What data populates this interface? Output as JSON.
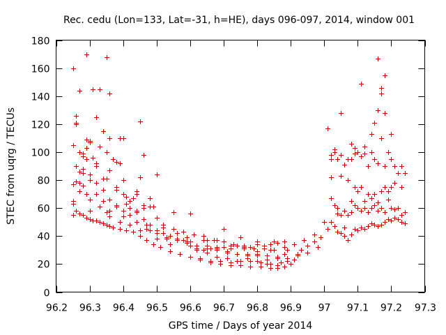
{
  "chart_data": {
    "type": "scatter",
    "title": "Rec. cedu (Lon=133, Lat=-31, h=HE), days 096-097, 2014, window 001",
    "xlabel": "GPS time / Days of year 2014",
    "ylabel": "STEC from uqrg / TECUs",
    "xlim": [
      96.2,
      97.3
    ],
    "ylim": [
      0,
      180
    ],
    "xticks": [
      96.2,
      96.3,
      96.4,
      96.5,
      96.6,
      96.7,
      96.8,
      96.9,
      97.0,
      97.1,
      97.2,
      97.3
    ],
    "xtick_labels": [
      "96.2",
      "96.3",
      "96.4",
      "96.5",
      "96.6",
      "96.7",
      "96.8",
      "96.9",
      "97",
      "97.1",
      "97.2",
      "97.3"
    ],
    "yticks": [
      0,
      20,
      40,
      60,
      80,
      100,
      120,
      140,
      160,
      180
    ],
    "ytick_labels": [
      "0",
      "20",
      "40",
      "60",
      "80",
      "100",
      "120",
      "140",
      "160",
      "180"
    ],
    "grid": false,
    "marker": "+",
    "color": "#cc0000",
    "x": [
      96.25,
      96.25,
      96.25,
      96.26,
      96.26,
      96.27,
      96.27,
      96.28,
      96.28,
      96.29,
      96.29,
      96.3,
      96.31,
      96.32,
      96.33,
      96.34,
      96.35,
      96.36,
      96.37,
      96.39,
      96.41,
      96.43,
      96.45,
      96.47,
      96.49,
      96.51,
      96.54,
      96.57,
      96.6,
      96.63,
      96.66,
      96.69,
      96.72,
      96.75,
      96.78,
      96.81,
      96.84,
      96.86,
      96.88,
      96.9,
      96.91,
      96.92,
      96.93,
      96.95,
      96.97,
      96.99,
      96.25,
      96.26,
      96.27,
      96.28,
      96.29,
      96.3,
      96.32,
      96.34,
      96.36,
      96.38,
      96.4,
      96.42,
      96.44,
      96.47,
      96.5,
      96.53,
      96.56,
      96.59,
      96.62,
      96.65,
      96.68,
      96.71,
      96.74,
      96.77,
      96.8,
      96.83,
      96.86,
      96.89,
      96.92,
      96.95,
      96.98,
      96.25,
      96.27,
      96.29,
      96.31,
      96.33,
      96.35,
      96.37,
      96.39,
      96.41,
      96.43,
      96.46,
      96.49,
      96.52,
      96.55,
      96.58,
      96.61,
      96.64,
      96.67,
      96.7,
      96.73,
      96.76,
      96.79,
      96.82,
      96.85,
      96.88,
      96.91,
      96.94,
      96.97,
      96.26,
      96.28,
      96.3,
      96.32,
      96.34,
      96.36,
      96.38,
      96.4,
      96.42,
      96.44,
      96.46,
      96.48,
      96.5,
      96.52,
      96.54,
      96.56,
      96.58,
      96.6,
      96.62,
      96.64,
      96.66,
      96.68,
      96.7,
      96.72,
      96.74,
      96.76,
      96.78,
      96.8,
      96.82,
      96.84,
      96.86,
      96.88,
      96.26,
      96.28,
      96.3,
      96.32,
      96.34,
      96.36,
      96.38,
      96.4,
      96.42,
      96.44,
      96.46,
      96.48,
      96.5,
      96.53,
      96.56,
      96.59,
      96.62,
      96.65,
      96.68,
      96.71,
      96.74,
      96.77,
      96.8,
      96.83,
      96.86,
      96.89,
      96.26,
      96.29,
      96.32,
      96.35,
      96.38,
      96.41,
      96.44,
      96.47,
      96.5,
      96.53,
      96.56,
      96.59,
      96.62,
      96.65,
      96.68,
      96.71,
      96.74,
      96.77,
      96.8,
      96.83,
      96.86,
      96.89,
      96.27,
      96.3,
      96.33,
      96.36,
      96.39,
      96.42,
      96.45,
      96.48,
      96.51,
      96.54,
      96.57,
      96.6,
      96.63,
      96.66,
      96.69,
      96.72,
      96.75,
      96.78,
      96.81,
      96.84,
      96.87,
      96.28,
      96.32,
      96.36,
      96.4,
      96.44,
      96.48,
      96.52,
      96.56,
      96.6,
      96.64,
      96.68,
      96.72,
      96.76,
      96.8,
      96.84,
      96.88,
      96.3,
      96.35,
      96.4,
      96.45,
      96.5,
      96.55,
      96.6,
      96.65,
      96.7,
      96.75,
      96.8,
      96.85,
      96.25,
      96.26,
      96.29,
      96.33,
      96.35,
      96.36,
      96.45,
      96.27,
      96.3,
      96.31,
      96.34,
      96.38,
      96.39,
      96.46,
      97.02,
      97.03,
      97.04,
      97.05,
      97.06,
      97.07,
      97.08,
      97.09,
      97.1,
      97.11,
      97.12,
      97.13,
      97.14,
      97.15,
      97.16,
      97.17,
      97.18,
      97.19,
      97.2,
      97.21,
      97.22,
      97.23,
      97.24,
      97.01,
      97.02,
      97.03,
      97.05,
      97.07,
      97.09,
      97.11,
      97.13,
      97.15,
      97.17,
      97.19,
      97.21,
      97.23,
      97.02,
      97.04,
      97.06,
      97.08,
      97.1,
      97.12,
      97.14,
      97.16,
      97.18,
      97.2,
      97.22,
      97.24,
      97.03,
      97.05,
      97.07,
      97.09,
      97.11,
      97.13,
      97.15,
      97.17,
      97.19,
      97.21,
      97.23,
      97.04,
      97.06,
      97.08,
      97.1,
      97.12,
      97.14,
      97.16,
      97.18,
      97.2,
      97.22,
      97.0,
      97.01,
      97.02,
      97.03,
      97.04,
      97.05,
      97.06,
      97.07,
      97.08,
      97.09,
      97.1,
      97.11,
      97.12,
      97.13,
      97.14,
      97.15,
      97.16,
      97.17,
      97.18,
      97.19,
      97.2,
      97.21,
      97.22,
      97.23,
      97.24,
      97.11,
      97.16,
      97.17,
      97.18,
      97.16,
      97.17,
      97.15,
      97.14,
      97.05,
      97.08,
      97.02,
      97.12,
      97.09,
      97.2,
      97.18
    ],
    "y": [
      55,
      63,
      77,
      58,
      79,
      56,
      72,
      55,
      76,
      53,
      70,
      52,
      51,
      51,
      50,
      49,
      48,
      47,
      46,
      45,
      44,
      43,
      40,
      37,
      34,
      32,
      29,
      27,
      25,
      23,
      21,
      20,
      19,
      19,
      18,
      18,
      17,
      17,
      18,
      20,
      23,
      27,
      30,
      33,
      36,
      39,
      65,
      90,
      86,
      88,
      95,
      84,
      70,
      65,
      58,
      62,
      54,
      55,
      50,
      45,
      42,
      38,
      37,
      35,
      33,
      31,
      30,
      28,
      27,
      26,
      27,
      26,
      25,
      24,
      26,
      28,
      32,
      105,
      100,
      103,
      96,
      104,
      100,
      95,
      92,
      68,
      67,
      60,
      61,
      48,
      45,
      43,
      41,
      40,
      37,
      36,
      34,
      33,
      31,
      31,
      30,
      32,
      34,
      37,
      41,
      120,
      85,
      80,
      78,
      73,
      66,
      61,
      58,
      60,
      58,
      52,
      48,
      44,
      42,
      40,
      37,
      37,
      33,
      31,
      30,
      31,
      32,
      32,
      31,
      33,
      31,
      32,
      34,
      33,
      34,
      35,
      36,
      126,
      97,
      107,
      90,
      81,
      87,
      75,
      70,
      65,
      70,
      62,
      67,
      53,
      39,
      42,
      36,
      33,
      33,
      31,
      29,
      27,
      27,
      26,
      23,
      24,
      30,
      121,
      109,
      92,
      81,
      73,
      63,
      57,
      48,
      38,
      38,
      37,
      39,
      30,
      28,
      25,
      24,
      22,
      24,
      22,
      20,
      19,
      22,
      78,
      66,
      61,
      54,
      50,
      48,
      44,
      44,
      32,
      34,
      27,
      25,
      24,
      22,
      22,
      21,
      22,
      22,
      21,
      20,
      21,
      99,
      125,
      110,
      80,
      72,
      61,
      46,
      38,
      36,
      37,
      37,
      33,
      32,
      29,
      30,
      27,
      58,
      57,
      110,
      82,
      84,
      57,
      56,
      37,
      45,
      39,
      36,
      36,
      160,
      121,
      170,
      145,
      168,
      142,
      122,
      144,
      108,
      145,
      115,
      93,
      110,
      98,
      98,
      100,
      95,
      98,
      91,
      95,
      95,
      99,
      100,
      97,
      104,
      90,
      100,
      95,
      92,
      110,
      90,
      100,
      95,
      90,
      85,
      90,
      85,
      117,
      82,
      102,
      83,
      80,
      75,
      75,
      70,
      70,
      72,
      72,
      78,
      75,
      67,
      60,
      58,
      57,
      60,
      60,
      60,
      58,
      57,
      60,
      60,
      57,
      62,
      55,
      55,
      62,
      58,
      57,
      62,
      60,
      66,
      59,
      55,
      56,
      46,
      65,
      72,
      65,
      67,
      64,
      75,
      75,
      60,
      50,
      45,
      50,
      47,
      43,
      42,
      40,
      37,
      41,
      45,
      44,
      46,
      45,
      47,
      49,
      48,
      47,
      48,
      50,
      52,
      51,
      53,
      52,
      50,
      49,
      149,
      167,
      142,
      155,
      130,
      146,
      121,
      113,
      128,
      106,
      95,
      99,
      103,
      113,
      128
    ],
    "series_name": "STEC"
  }
}
